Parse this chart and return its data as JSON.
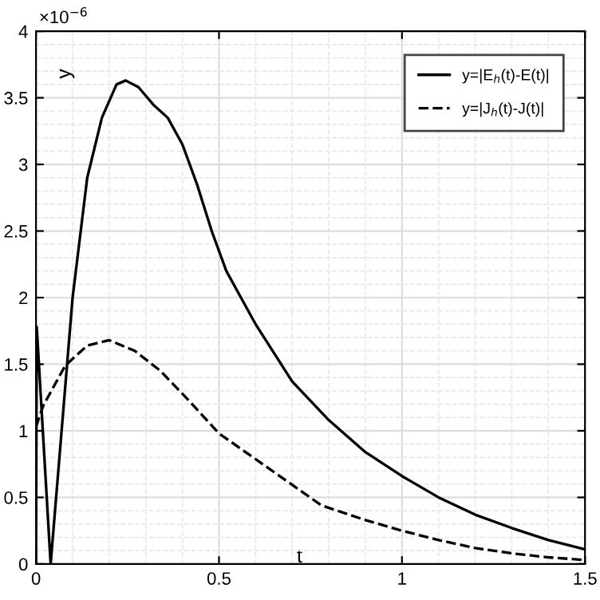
{
  "chart_data": {
    "type": "line",
    "xlabel": "t",
    "ylabel": "y",
    "annotations": [
      "×10$^{−6}$"
    ],
    "series": [
      {
        "name": "y=|E$_{h}$(t)-E(t)|",
        "color": "#000000",
        "line_style": "solid",
        "x": [
          0,
          0.002,
          0.04,
          0.07,
          0.1,
          0.14,
          0.18,
          0.22,
          0.245,
          0.28,
          0.32,
          0.36,
          0.4,
          0.44,
          0.48,
          0.52,
          0.56,
          0.6,
          0.7,
          0.8,
          0.9,
          1.0,
          1.1,
          1.2,
          1.3,
          1.4,
          1.5
        ],
        "values": [
          0,
          1.78,
          0,
          1.0,
          2.0,
          2.9,
          3.35,
          3.6,
          3.63,
          3.58,
          3.45,
          3.35,
          3.15,
          2.85,
          2.5,
          2.2,
          2.0,
          1.8,
          1.37,
          1.08,
          0.84,
          0.66,
          0.5,
          0.37,
          0.27,
          0.18,
          0.11
        ]
      },
      {
        "name": "y=|J$_{h}$(t)-J(t)|",
        "color": "#000000",
        "line_style": "dashed",
        "x": [
          0,
          0.02,
          0.08,
          0.14,
          0.2,
          0.27,
          0.34,
          0.42,
          0.5,
          0.64,
          0.78,
          0.9,
          1.0,
          1.1,
          1.2,
          1.3,
          1.4,
          1.5
        ],
        "values": [
          1.03,
          1.19,
          1.49,
          1.64,
          1.68,
          1.6,
          1.45,
          1.22,
          0.98,
          0.71,
          0.44,
          0.33,
          0.25,
          0.18,
          0.12,
          0.08,
          0.05,
          0.03
        ]
      }
    ],
    "xlim": [
      0,
      1.5
    ],
    "xticks": [
      0,
      0.5,
      1,
      1.5
    ],
    "ylim": [
      0,
      4
    ],
    "yticks": [
      0,
      0.5,
      1,
      1.5,
      2,
      2.5,
      3,
      3.5,
      4
    ],
    "grid": true,
    "legend": "top right"
  }
}
